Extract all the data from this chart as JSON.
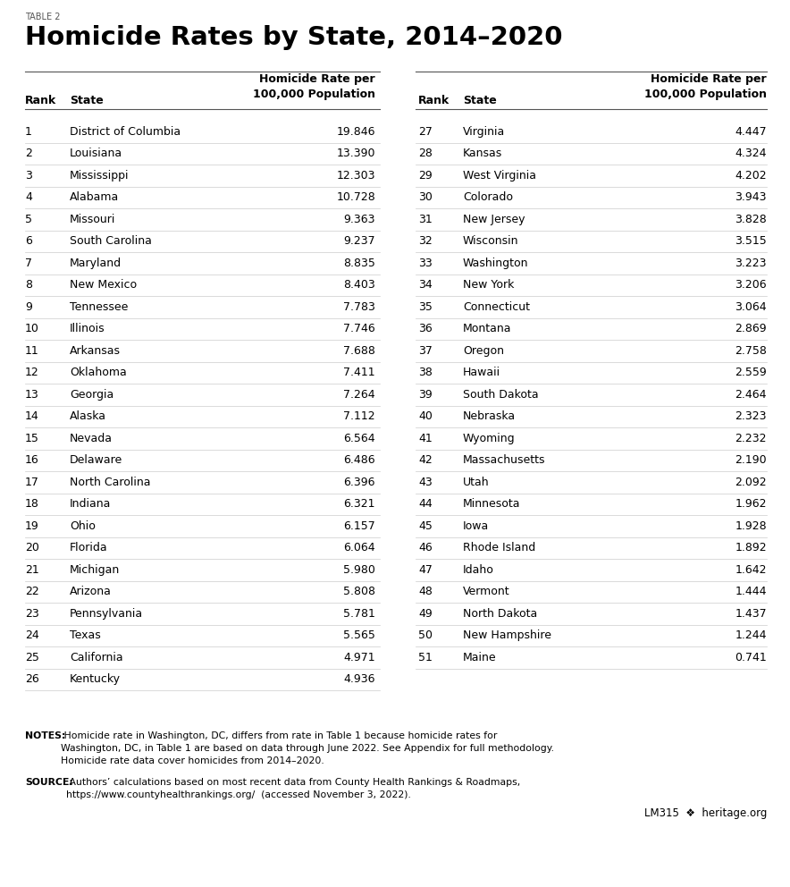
{
  "table_label": "TABLE 2",
  "title": "Homicide Rates by State, 2014–2020",
  "left_data": [
    [
      1,
      "District of Columbia",
      "19.846"
    ],
    [
      2,
      "Louisiana",
      "13.390"
    ],
    [
      3,
      "Mississippi",
      "12.303"
    ],
    [
      4,
      "Alabama",
      "10.728"
    ],
    [
      5,
      "Missouri",
      "9.363"
    ],
    [
      6,
      "South Carolina",
      "9.237"
    ],
    [
      7,
      "Maryland",
      "8.835"
    ],
    [
      8,
      "New Mexico",
      "8.403"
    ],
    [
      9,
      "Tennessee",
      "7.783"
    ],
    [
      10,
      "Illinois",
      "7.746"
    ],
    [
      11,
      "Arkansas",
      "7.688"
    ],
    [
      12,
      "Oklahoma",
      "7.411"
    ],
    [
      13,
      "Georgia",
      "7.264"
    ],
    [
      14,
      "Alaska",
      "7.112"
    ],
    [
      15,
      "Nevada",
      "6.564"
    ],
    [
      16,
      "Delaware",
      "6.486"
    ],
    [
      17,
      "North Carolina",
      "6.396"
    ],
    [
      18,
      "Indiana",
      "6.321"
    ],
    [
      19,
      "Ohio",
      "6.157"
    ],
    [
      20,
      "Florida",
      "6.064"
    ],
    [
      21,
      "Michigan",
      "5.980"
    ],
    [
      22,
      "Arizona",
      "5.808"
    ],
    [
      23,
      "Pennsylvania",
      "5.781"
    ],
    [
      24,
      "Texas",
      "5.565"
    ],
    [
      25,
      "California",
      "4.971"
    ],
    [
      26,
      "Kentucky",
      "4.936"
    ]
  ],
  "right_data": [
    [
      27,
      "Virginia",
      "4.447"
    ],
    [
      28,
      "Kansas",
      "4.324"
    ],
    [
      29,
      "West Virginia",
      "4.202"
    ],
    [
      30,
      "Colorado",
      "3.943"
    ],
    [
      31,
      "New Jersey",
      "3.828"
    ],
    [
      32,
      "Wisconsin",
      "3.515"
    ],
    [
      33,
      "Washington",
      "3.223"
    ],
    [
      34,
      "New York",
      "3.206"
    ],
    [
      35,
      "Connecticut",
      "3.064"
    ],
    [
      36,
      "Montana",
      "2.869"
    ],
    [
      37,
      "Oregon",
      "2.758"
    ],
    [
      38,
      "Hawaii",
      "2.559"
    ],
    [
      39,
      "South Dakota",
      "2.464"
    ],
    [
      40,
      "Nebraska",
      "2.323"
    ],
    [
      41,
      "Wyoming",
      "2.232"
    ],
    [
      42,
      "Massachusetts",
      "2.190"
    ],
    [
      43,
      "Utah",
      "2.092"
    ],
    [
      44,
      "Minnesota",
      "1.962"
    ],
    [
      45,
      "Iowa",
      "1.928"
    ],
    [
      46,
      "Rhode Island",
      "1.892"
    ],
    [
      47,
      "Idaho",
      "1.642"
    ],
    [
      48,
      "Vermont",
      "1.444"
    ],
    [
      49,
      "North Dakota",
      "1.437"
    ],
    [
      50,
      "New Hampshire",
      "1.244"
    ],
    [
      51,
      "Maine",
      "0.741"
    ]
  ],
  "notes_bold": "NOTES:",
  "notes_text": " Homicide rate in Washington, DC, differs from rate in Table 1 because homicide rates for\nWashington, DC, in Table 1 are based on data through June 2022. See Appendix for full methodology.\nHomicide rate data cover homicides from 2014–2020.",
  "source_bold": "SOURCE:",
  "source_text": " Authors’ calculations based on most recent data from County Health Rankings & Roadmaps,\nhttps://www.countyhealthrankings.org/  (accessed November 3, 2022).",
  "footer_right": "LM315  ❖  heritage.org",
  "bg_color": "#ffffff",
  "text_color": "#000000",
  "label_color": "#555555",
  "line_color": "#cccccc",
  "header_line_color": "#555555"
}
